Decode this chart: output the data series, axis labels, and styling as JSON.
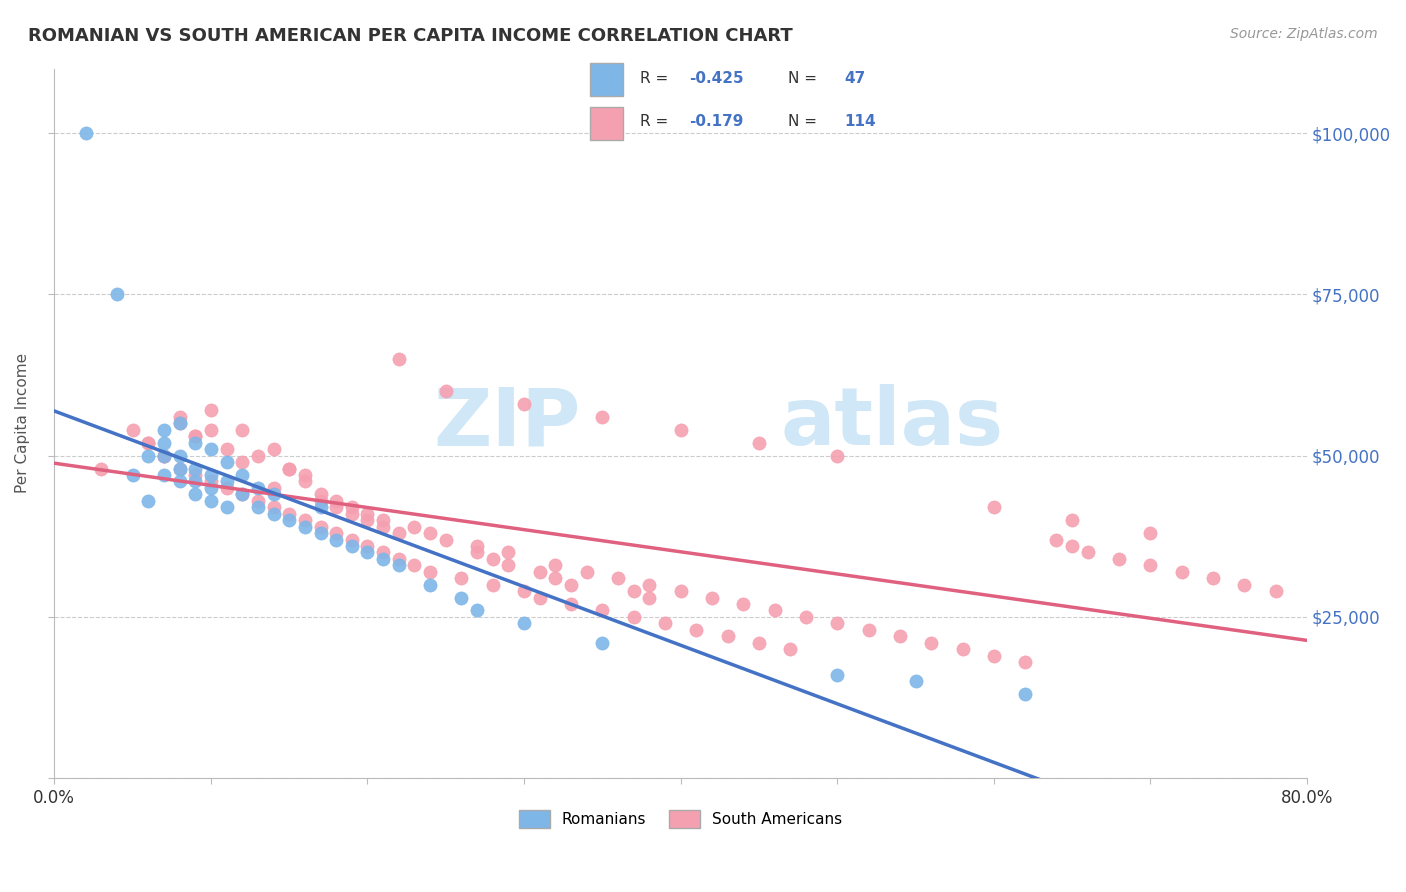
{
  "title": "ROMANIAN VS SOUTH AMERICAN PER CAPITA INCOME CORRELATION CHART",
  "source_text": "Source: ZipAtlas.com",
  "ylabel": "Per Capita Income",
  "xlim": [
    0.0,
    0.8
  ],
  "ylim": [
    0,
    110000
  ],
  "x_ticks": [
    0.0,
    0.1,
    0.2,
    0.3,
    0.4,
    0.5,
    0.6,
    0.7,
    0.8
  ],
  "x_tick_labels": [
    "0.0%",
    "",
    "",
    "",
    "",
    "",
    "",
    "",
    "80.0%"
  ],
  "y_ticks": [
    0,
    25000,
    50000,
    75000,
    100000
  ],
  "y_tick_labels": [
    "",
    "$25,000",
    "$50,000",
    "$75,000",
    "$100,000"
  ],
  "romanian_color": "#7EB6E8",
  "south_american_color": "#F5A0B0",
  "romanian_line_color": "#4472C4",
  "south_american_line_color": "#E06080",
  "background_color": "#FFFFFF",
  "grid_color": "#CCCCCC",
  "axis_label_color": "#555555",
  "tick_label_color_right": "#4472C4",
  "watermark_text": "ZIPatlas",
  "romanian_points_x": [
    0.02,
    0.04,
    0.05,
    0.06,
    0.06,
    0.07,
    0.07,
    0.07,
    0.08,
    0.08,
    0.08,
    0.09,
    0.09,
    0.09,
    0.1,
    0.1,
    0.1,
    0.11,
    0.11,
    0.11,
    0.12,
    0.12,
    0.13,
    0.13,
    0.14,
    0.14,
    0.15,
    0.16,
    0.17,
    0.17,
    0.18,
    0.19,
    0.2,
    0.21,
    0.22,
    0.24,
    0.26,
    0.27,
    0.3,
    0.35,
    0.5,
    0.55,
    0.62,
    0.07,
    0.08,
    0.09,
    0.1
  ],
  "romanian_points_y": [
    100000,
    75000,
    47000,
    50000,
    43000,
    47000,
    50000,
    54000,
    46000,
    50000,
    55000,
    44000,
    48000,
    52000,
    43000,
    47000,
    51000,
    42000,
    46000,
    49000,
    44000,
    47000,
    42000,
    45000,
    41000,
    44000,
    40000,
    39000,
    38000,
    42000,
    37000,
    36000,
    35000,
    34000,
    33000,
    30000,
    28000,
    26000,
    24000,
    21000,
    16000,
    15000,
    13000,
    52000,
    48000,
    46000,
    45000
  ],
  "south_american_points_x": [
    0.03,
    0.06,
    0.07,
    0.08,
    0.08,
    0.09,
    0.09,
    0.1,
    0.1,
    0.11,
    0.11,
    0.12,
    0.12,
    0.13,
    0.13,
    0.14,
    0.14,
    0.15,
    0.15,
    0.16,
    0.16,
    0.17,
    0.17,
    0.18,
    0.18,
    0.19,
    0.19,
    0.2,
    0.2,
    0.21,
    0.21,
    0.22,
    0.22,
    0.23,
    0.24,
    0.25,
    0.26,
    0.27,
    0.28,
    0.29,
    0.3,
    0.31,
    0.32,
    0.33,
    0.34,
    0.35,
    0.36,
    0.37,
    0.38,
    0.39,
    0.4,
    0.41,
    0.42,
    0.43,
    0.44,
    0.45,
    0.46,
    0.47,
    0.48,
    0.5,
    0.52,
    0.54,
    0.56,
    0.58,
    0.6,
    0.62,
    0.64,
    0.65,
    0.66,
    0.68,
    0.7,
    0.72,
    0.74,
    0.76,
    0.78,
    0.22,
    0.25,
    0.3,
    0.35,
    0.4,
    0.45,
    0.5,
    0.6,
    0.65,
    0.7,
    0.1,
    0.12,
    0.14,
    0.15,
    0.16,
    0.17,
    0.18,
    0.19,
    0.2,
    0.21,
    0.23,
    0.24,
    0.27,
    0.28,
    0.29,
    0.31,
    0.32,
    0.33,
    0.37,
    0.38,
    0.05,
    0.06,
    0.07,
    0.08,
    0.09
  ],
  "south_american_points_y": [
    48000,
    52000,
    50000,
    48000,
    56000,
    47000,
    53000,
    46000,
    54000,
    45000,
    51000,
    44000,
    49000,
    43000,
    50000,
    42000,
    45000,
    41000,
    48000,
    40000,
    47000,
    39000,
    43000,
    38000,
    42000,
    37000,
    41000,
    36000,
    40000,
    35000,
    39000,
    34000,
    38000,
    33000,
    32000,
    37000,
    31000,
    36000,
    30000,
    35000,
    29000,
    28000,
    33000,
    27000,
    32000,
    26000,
    31000,
    25000,
    30000,
    24000,
    29000,
    23000,
    28000,
    22000,
    27000,
    21000,
    26000,
    20000,
    25000,
    24000,
    23000,
    22000,
    21000,
    20000,
    19000,
    18000,
    37000,
    36000,
    35000,
    34000,
    33000,
    32000,
    31000,
    30000,
    29000,
    65000,
    60000,
    58000,
    56000,
    54000,
    52000,
    50000,
    42000,
    40000,
    38000,
    57000,
    54000,
    51000,
    48000,
    46000,
    44000,
    43000,
    42000,
    41000,
    40000,
    39000,
    38000,
    35000,
    34000,
    33000,
    32000,
    31000,
    30000,
    29000,
    28000,
    54000,
    52000,
    50000,
    55000,
    53000
  ]
}
